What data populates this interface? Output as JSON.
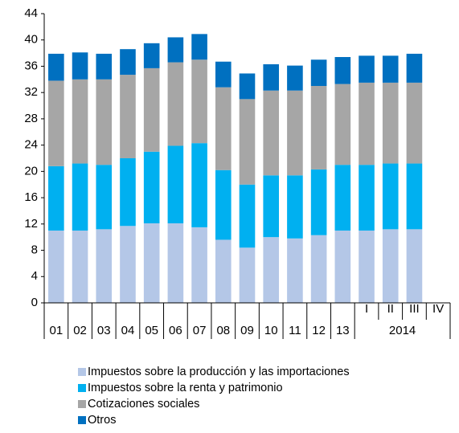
{
  "chart_data": {
    "type": "bar",
    "stacked": true,
    "categories": [
      "01",
      "02",
      "03",
      "04",
      "05",
      "06",
      "07",
      "08",
      "09",
      "10",
      "11",
      "12",
      "13",
      "I",
      "II",
      "III",
      "IV"
    ],
    "group_label": "2014",
    "series": [
      {
        "name": "Impuestos sobre la producción y las importaciones",
        "color": "#b4c7e7",
        "values": [
          11,
          11,
          11.2,
          11.7,
          12.1,
          12.1,
          11.5,
          9.6,
          8.4,
          10,
          9.8,
          10.3,
          11,
          11,
          11.2,
          11.2,
          null
        ]
      },
      {
        "name": "Impuestos sobre la renta y patrimonio",
        "color": "#00b0f0",
        "values": [
          9.8,
          10.2,
          9.8,
          10.3,
          10.9,
          11.8,
          12.8,
          10.6,
          9.6,
          9.4,
          9.6,
          10,
          10,
          10,
          10,
          10,
          null
        ]
      },
      {
        "name": "Cotizaciones sociales",
        "color": "#a6a6a6",
        "values": [
          13,
          12.8,
          13,
          12.7,
          12.7,
          12.7,
          12.7,
          12.6,
          13,
          12.9,
          12.9,
          12.7,
          12.3,
          12.5,
          12.3,
          12.3,
          null
        ]
      },
      {
        "name": "Otros",
        "color": "#0070c0",
        "values": [
          4.1,
          4.1,
          3.9,
          3.9,
          3.8,
          3.8,
          3.9,
          3.9,
          3.9,
          4,
          3.8,
          4,
          4.1,
          4.1,
          4.1,
          4.4,
          null
        ]
      }
    ],
    "ylim": [
      0,
      44
    ],
    "yticks": [
      0,
      4,
      8,
      12,
      16,
      20,
      24,
      28,
      32,
      36,
      40,
      44
    ]
  }
}
